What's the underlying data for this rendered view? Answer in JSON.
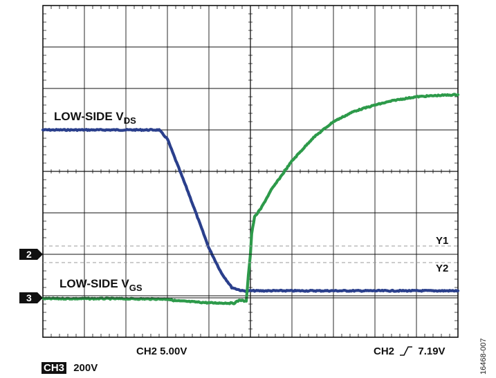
{
  "chart_data": {
    "type": "line",
    "grid": true,
    "divisions": {
      "x": 10,
      "y": 8
    },
    "series": [
      {
        "name": "LOW-SIDE VDS",
        "color": "#2a3f8c",
        "points": [
          [
            0,
            5.0
          ],
          [
            2.8,
            5.0
          ],
          [
            3.0,
            4.78
          ],
          [
            3.5,
            3.5
          ],
          [
            4.0,
            2.15
          ],
          [
            4.3,
            1.55
          ],
          [
            4.55,
            1.2
          ],
          [
            4.8,
            1.12
          ],
          [
            5.5,
            1.12
          ],
          [
            7.0,
            1.12
          ],
          [
            8.5,
            1.12
          ],
          [
            10,
            1.12
          ]
        ]
      },
      {
        "name": "LOW-SIDE VGS",
        "color": "#2d9a4a",
        "points": [
          [
            0,
            0.93
          ],
          [
            1.5,
            0.93
          ],
          [
            3.0,
            0.92
          ],
          [
            3.2,
            0.88
          ],
          [
            4.0,
            0.83
          ],
          [
            4.6,
            0.82
          ],
          [
            4.75,
            0.9
          ],
          [
            4.9,
            0.86
          ],
          [
            4.95,
            1.5
          ],
          [
            5.0,
            2.0
          ],
          [
            5.03,
            2.5
          ],
          [
            5.1,
            2.9
          ],
          [
            5.25,
            3.1
          ],
          [
            5.5,
            3.55
          ],
          [
            6.0,
            4.25
          ],
          [
            6.5,
            4.8
          ],
          [
            7.0,
            5.2
          ],
          [
            7.5,
            5.45
          ],
          [
            8.0,
            5.6
          ],
          [
            8.5,
            5.72
          ],
          [
            9.0,
            5.8
          ],
          [
            9.5,
            5.83
          ],
          [
            10,
            5.85
          ]
        ]
      }
    ],
    "annotations": {
      "vds_label": {
        "main": "LOW-SIDE V",
        "sub": "DS"
      },
      "vgs_label": {
        "main": "LOW-SIDE V",
        "sub": "GS"
      },
      "cursor_y1": {
        "label": "Y1",
        "value": 2.2
      },
      "cursor_y2": {
        "label": "Y2",
        "value": 1.8
      }
    },
    "markers": [
      {
        "label": "2",
        "value": 2.0
      },
      {
        "label": "3",
        "value": 0.95
      }
    ]
  },
  "readouts": {
    "ch2_scale": "CH2 5.00V",
    "trigger_prefix": "CH2",
    "trigger_value": "7.19V",
    "ch3_label": "CH3",
    "ch3_scale": "200V"
  },
  "figure_id": "16468-007"
}
